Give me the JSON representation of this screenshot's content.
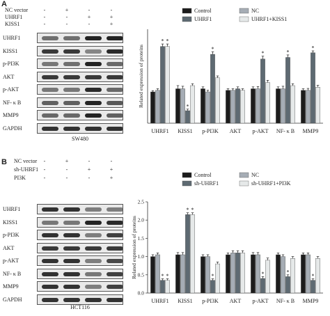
{
  "panels": [
    {
      "label": "A",
      "cell_line": "SW480",
      "conditions": [
        {
          "name": "NC vector",
          "signs": [
            "-",
            "+",
            "-",
            "-"
          ]
        },
        {
          "name": "UHRF1",
          "signs": [
            "-",
            "-",
            "+",
            "+"
          ]
        },
        {
          "name": "KISS1",
          "signs": [
            "-",
            "-",
            "-",
            "+"
          ]
        }
      ],
      "blot_rows": [
        {
          "label": "UHRF1",
          "levels": [
            0.45,
            0.45,
            0.95,
            0.95
          ]
        },
        {
          "label": "KISS1",
          "levels": [
            0.8,
            0.8,
            0.3,
            0.9
          ]
        },
        {
          "label": "p-PI3K",
          "levels": [
            0.4,
            0.45,
            0.95,
            0.5
          ]
        },
        {
          "label": "AKT",
          "levels": [
            0.8,
            0.8,
            0.8,
            0.8
          ]
        },
        {
          "label": "p-AKT",
          "levels": [
            0.4,
            0.4,
            0.9,
            0.5
          ]
        },
        {
          "label": "NF- κ B",
          "levels": [
            0.55,
            0.55,
            0.95,
            0.6
          ]
        },
        {
          "label": "MMP9",
          "levels": [
            0.5,
            0.5,
            0.95,
            0.55
          ]
        },
        {
          "label": "GAPDH",
          "levels": [
            0.85,
            0.85,
            0.85,
            0.85
          ]
        }
      ],
      "chart_data": {
        "type": "bar",
        "title": "",
        "xlabel": "",
        "ylabel": "Related expression of proteins",
        "ylim": [
          0,
          3
        ],
        "yticks": [],
        "legend_position": "top",
        "categories": [
          "UHRF1",
          "KISS1",
          "p-PI3K",
          "AKT",
          "p-AKT",
          "NF- κ B",
          "MMP9"
        ],
        "series": [
          {
            "name": "Control",
            "color": "#1c1c1c",
            "values": [
              1.0,
              1.1,
              1.1,
              1.05,
              1.1,
              1.1,
              1.05
            ],
            "errors": [
              0.04,
              0.1,
              0.06,
              0.05,
              0.06,
              0.06,
              0.05
            ]
          },
          {
            "name": "NC",
            "color": "#a6adb5",
            "values": [
              1.05,
              1.1,
              1.0,
              1.05,
              1.1,
              1.1,
              1.05
            ],
            "errors": [
              0.05,
              0.08,
              0.05,
              0.05,
              0.07,
              0.08,
              0.06
            ]
          },
          {
            "name": "UHRF1",
            "color": "#5e6a72",
            "values": [
              2.45,
              0.4,
              2.2,
              1.1,
              2.05,
              2.1,
              2.25
            ],
            "errors": [
              0.08,
              0.05,
              0.08,
              0.06,
              0.09,
              0.08,
              0.06
            ]
          },
          {
            "name": "UHRF1+KISS1",
            "color": "#e6e9e9",
            "values": [
              2.45,
              1.2,
              1.45,
              1.05,
              1.3,
              1.2,
              1.15
            ],
            "errors": [
              0.08,
              0.06,
              0.06,
              0.05,
              0.07,
              0.06,
              0.06
            ]
          }
        ],
        "asterisks": [
          {
            "category": 0,
            "series": 2,
            "text": "*"
          },
          {
            "category": 0,
            "series": 3,
            "text": "*"
          },
          {
            "category": 1,
            "series": 2,
            "text": "*"
          },
          {
            "category": 2,
            "series": 2,
            "text": "*"
          },
          {
            "category": 4,
            "series": 2,
            "text": "*"
          },
          {
            "category": 5,
            "series": 2,
            "text": "*"
          },
          {
            "category": 6,
            "series": 2,
            "text": "*"
          }
        ]
      }
    },
    {
      "label": "B",
      "cell_line": "HCT116",
      "conditions": [
        {
          "name": "NC vector",
          "signs": [
            "-",
            "+",
            "-",
            "-"
          ]
        },
        {
          "name": "sh-UHRF1",
          "signs": [
            "-",
            "-",
            "+",
            "+"
          ]
        },
        {
          "name": "PI3K",
          "signs": [
            "-",
            "-",
            "-",
            "+"
          ]
        }
      ],
      "blot_rows": [
        {
          "label": "UHRF1",
          "levels": [
            0.85,
            0.85,
            0.35,
            0.35
          ]
        },
        {
          "label": "KISS1",
          "levels": [
            0.4,
            0.4,
            0.95,
            0.9
          ]
        },
        {
          "label": "p-PI3K",
          "levels": [
            0.85,
            0.85,
            0.35,
            0.75
          ]
        },
        {
          "label": "AKT",
          "levels": [
            0.8,
            0.8,
            0.8,
            0.8
          ]
        },
        {
          "label": "p-AKT",
          "levels": [
            0.85,
            0.85,
            0.35,
            0.7
          ]
        },
        {
          "label": "NF- κ B",
          "levels": [
            0.85,
            0.85,
            0.4,
            0.75
          ]
        },
        {
          "label": "MMP9",
          "levels": [
            0.85,
            0.85,
            0.35,
            0.75
          ]
        },
        {
          "label": "GAPDH",
          "levels": [
            0.85,
            0.85,
            0.85,
            0.85
          ]
        }
      ],
      "chart_data": {
        "type": "bar",
        "title": "",
        "xlabel": "",
        "ylabel": "Related expression of proteins",
        "ylim": [
          0,
          2.5
        ],
        "yticks": [
          0.0,
          0.5,
          1.0,
          1.5,
          2.0,
          2.5
        ],
        "legend_position": "top",
        "categories": [
          "UHRF1",
          "KISS1",
          "p-PI3K",
          "AKT",
          "p-AKT",
          "NF- κ B",
          "MMP9"
        ],
        "series": [
          {
            "name": "Control",
            "color": "#1c1c1c",
            "values": [
              1.0,
              1.05,
              1.0,
              1.05,
              1.05,
              1.05,
              1.05
            ],
            "errors": [
              0.05,
              0.06,
              0.05,
              0.05,
              0.06,
              0.05,
              0.05
            ]
          },
          {
            "name": "NC",
            "color": "#a6adb5",
            "values": [
              1.05,
              1.05,
              1.0,
              1.1,
              1.05,
              1.0,
              1.05
            ],
            "errors": [
              0.05,
              0.06,
              0.05,
              0.06,
              0.06,
              0.05,
              0.05
            ]
          },
          {
            "name": "sh-UHRF1",
            "color": "#5e6a72",
            "values": [
              0.35,
              2.15,
              0.35,
              1.1,
              0.4,
              0.45,
              0.35
            ],
            "errors": [
              0.04,
              0.05,
              0.04,
              0.06,
              0.05,
              0.05,
              0.04
            ]
          },
          {
            "name": "sh-UHRF1+PI3K",
            "color": "#e6e9e9",
            "values": [
              0.35,
              2.15,
              0.8,
              1.1,
              0.9,
              0.95,
              0.95
            ],
            "errors": [
              0.04,
              0.05,
              0.05,
              0.06,
              0.06,
              0.05,
              0.05
            ]
          }
        ],
        "asterisks": [
          {
            "category": 0,
            "series": 2,
            "text": "*"
          },
          {
            "category": 0,
            "series": 3,
            "text": "*"
          },
          {
            "category": 1,
            "series": 2,
            "text": "*"
          },
          {
            "category": 1,
            "series": 3,
            "text": "*"
          },
          {
            "category": 2,
            "series": 2,
            "text": "*"
          },
          {
            "category": 4,
            "series": 2,
            "text": "*"
          },
          {
            "category": 5,
            "series": 2,
            "text": "*"
          },
          {
            "category": 6,
            "series": 2,
            "text": "*"
          }
        ]
      }
    }
  ]
}
